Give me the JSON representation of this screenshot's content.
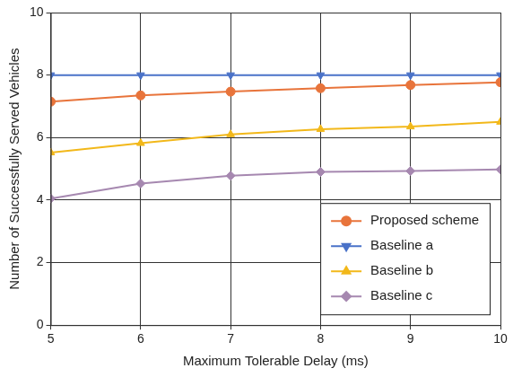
{
  "chart_data": {
    "type": "line",
    "x_label": "Maximum Tolerable Delay (ms)",
    "y_label": "Number of Successfully Served Vehicles",
    "x": [
      5,
      6,
      7,
      8,
      9,
      10
    ],
    "series": [
      {
        "name": "Proposed scheme",
        "color": "#e8743b",
        "marker": "circle",
        "values": [
          7.15,
          7.35,
          7.47,
          7.58,
          7.68,
          7.77
        ]
      },
      {
        "name": "Baseline a",
        "color": "#4a72c8",
        "marker": "triangle-down",
        "values": [
          8,
          8,
          8,
          8,
          8,
          8
        ]
      },
      {
        "name": "Baseline b",
        "color": "#f2b81a",
        "marker": "triangle-up",
        "values": [
          5.52,
          5.82,
          6.1,
          6.27,
          6.35,
          6.5
        ]
      },
      {
        "name": "Baseline c",
        "color": "#a688b0",
        "marker": "diamond",
        "values": [
          4.05,
          4.53,
          4.78,
          4.9,
          4.93,
          4.98
        ]
      }
    ],
    "xlim": [
      5,
      10
    ],
    "xticks": [
      5,
      6,
      7,
      8,
      9,
      10
    ],
    "ylim": [
      0,
      10
    ],
    "yticks": [
      0,
      2,
      4,
      6,
      8,
      10
    ],
    "grid": true,
    "legend": "lower right"
  }
}
